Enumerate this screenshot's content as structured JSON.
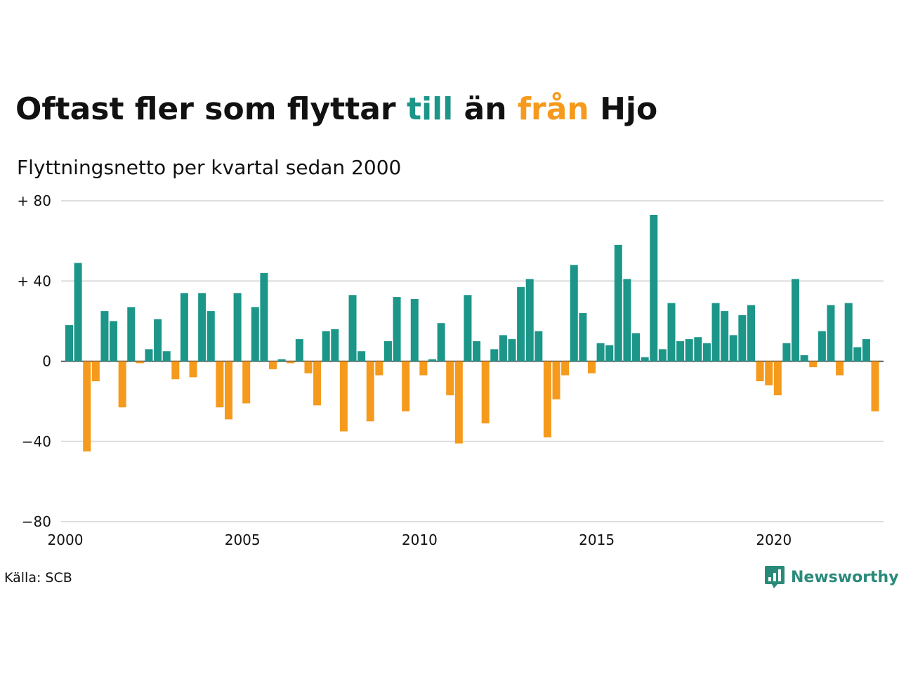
{
  "title": {
    "part1": "Oftast fler som flyttar ",
    "part2": "till",
    "part3": " än ",
    "part4": "från",
    "part5": " Hjo"
  },
  "subtitle": "Flyttningsnetto per kvartal sedan 2000",
  "colors": {
    "positive": "#1b9688",
    "negative": "#f59a1c",
    "text": "#111111",
    "grid": "#dddddd",
    "brand": "#2a8a7a"
  },
  "source": "Källa: SCB",
  "brand": {
    "name": "Newsworthy",
    "icon": "newsworthy-logo-icon"
  },
  "chart_data": {
    "type": "bar",
    "title": "Flyttningsnetto per kvartal sedan 2000",
    "xlabel": "",
    "ylabel": "",
    "ylim": [
      -80,
      80
    ],
    "yticks": [
      {
        "value": 80,
        "label": "+ 80"
      },
      {
        "value": 40,
        "label": "+ 40"
      },
      {
        "value": 0,
        "label": "0"
      },
      {
        "value": -40,
        "label": "−40"
      },
      {
        "value": -80,
        "label": "−80"
      }
    ],
    "xticks": [
      {
        "year": 2000,
        "label": "2000"
      },
      {
        "year": 2005,
        "label": "2005"
      },
      {
        "year": 2010,
        "label": "2010"
      },
      {
        "year": 2015,
        "label": "2015"
      },
      {
        "year": 2020,
        "label": "2020"
      }
    ],
    "grid": true,
    "legend": "none",
    "start": "2000 Q1",
    "values": [
      18,
      49,
      -45,
      -10,
      25,
      20,
      -23,
      27,
      -1,
      6,
      21,
      5,
      -9,
      34,
      -8,
      34,
      25,
      -23,
      -29,
      34,
      -21,
      27,
      44,
      -4,
      1,
      -1,
      11,
      -6,
      -22,
      15,
      16,
      -35,
      33,
      5,
      -30,
      -7,
      10,
      32,
      -25,
      31,
      -7,
      1,
      19,
      -17,
      -41,
      33,
      10,
      -31,
      6,
      13,
      11,
      37,
      41,
      15,
      -38,
      -19,
      -7,
      48,
      24,
      -6,
      9,
      8,
      58,
      41,
      14,
      2,
      73,
      6,
      29,
      10,
      11,
      12,
      9,
      29,
      25,
      13,
      23,
      28,
      -10,
      -12,
      -17,
      9,
      41,
      3,
      -3,
      15,
      28,
      -7,
      29,
      7,
      11,
      -25
    ]
  }
}
